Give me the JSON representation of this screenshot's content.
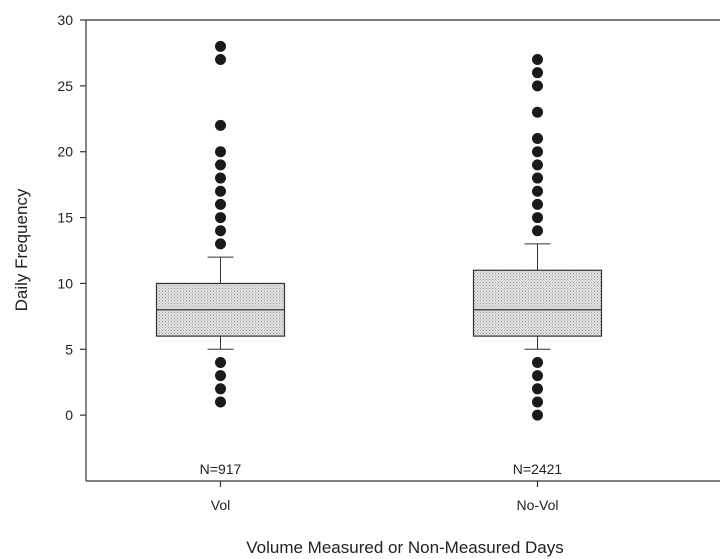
{
  "chart_data": {
    "type": "box",
    "title": "",
    "xlabel": "Volume Measured or Non-Measured Days",
    "ylabel": "Daily Frequency",
    "ylim": [
      -5,
      30
    ],
    "yticks": [
      0,
      5,
      10,
      15,
      20,
      25,
      30
    ],
    "grid": false,
    "legend": "none",
    "colors": {
      "box_fill": "#d9d9d9",
      "box_stroke": "#333333",
      "outlier": "#1a1a1a",
      "axis": "#333333"
    },
    "categories": [
      "Vol",
      "No-Vol"
    ],
    "groups": [
      {
        "category": "Vol",
        "n_label": "N=917",
        "q1": 6,
        "median": 8,
        "q3": 10,
        "whisker_low": 5,
        "whisker_high": 12,
        "outliers": [
          1,
          2,
          3,
          4,
          13,
          14,
          15,
          16,
          17,
          18,
          19,
          20,
          22,
          27,
          28
        ]
      },
      {
        "category": "No-Vol",
        "n_label": "N=2421",
        "q1": 6,
        "median": 8,
        "q3": 11,
        "whisker_low": 5,
        "whisker_high": 13,
        "outliers": [
          0,
          1,
          2,
          3,
          4,
          14,
          15,
          16,
          17,
          18,
          19,
          20,
          21,
          23,
          25,
          26,
          27
        ]
      }
    ]
  }
}
